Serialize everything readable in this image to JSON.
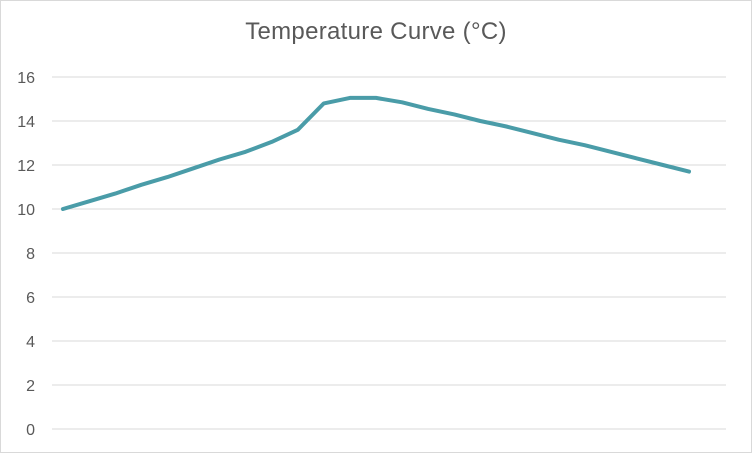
{
  "chart_data": {
    "type": "line",
    "title": "Temperature Curve (°C)",
    "xlabel": "",
    "ylabel": "",
    "ylim": [
      0,
      16
    ],
    "yticks": [
      0,
      2,
      4,
      6,
      8,
      10,
      12,
      14,
      16
    ],
    "grid": true,
    "legend": "none",
    "series": [
      {
        "color": "#4a9ca8",
        "x": [
          0,
          1,
          2,
          3,
          4,
          5,
          6,
          7,
          8,
          9,
          10,
          11,
          12,
          13,
          14,
          15,
          16,
          17,
          18,
          19,
          20,
          21,
          22,
          23,
          24
        ],
        "values": [
          10.0,
          10.35,
          10.7,
          11.1,
          11.45,
          11.85,
          12.25,
          12.6,
          13.05,
          13.6,
          14.8,
          15.05,
          15.05,
          14.85,
          14.55,
          14.3,
          14.0,
          13.75,
          13.45,
          13.15,
          12.9,
          12.6,
          12.3,
          12.0,
          11.7
        ]
      }
    ]
  }
}
